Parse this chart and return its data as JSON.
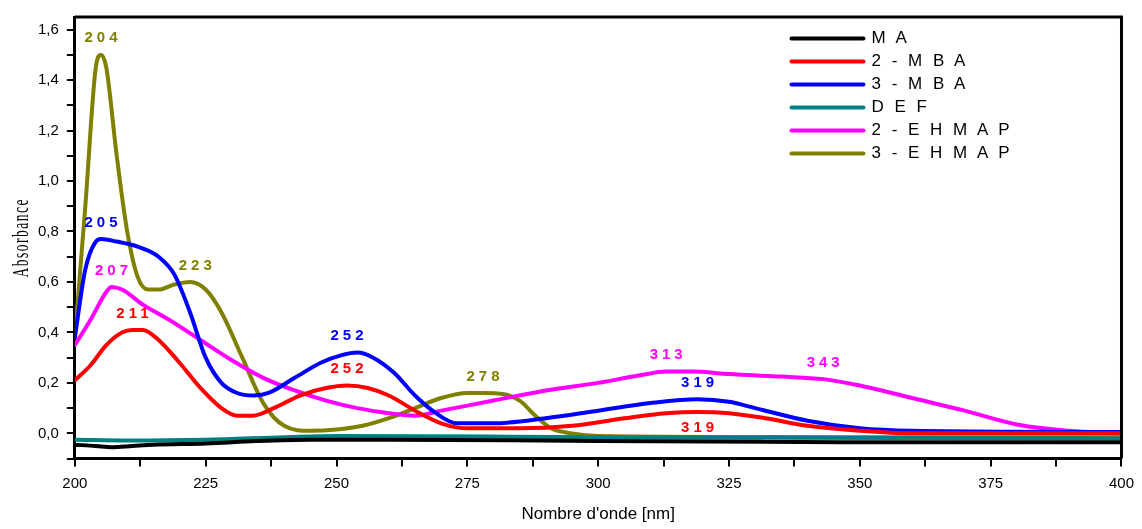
{
  "chart_data": {
    "type": "line",
    "xlabel": "Nombre d'onde [nm]",
    "ylabel": "Absorbance",
    "xlim": [
      200,
      400
    ],
    "ylim": [
      -0.1,
      1.65
    ],
    "xticks": [
      200,
      {
        "value": 212.5,
        "label": null
      },
      225,
      {
        "value": 237.5,
        "label": null
      },
      250,
      {
        "value": 262.5,
        "label": null
      },
      275,
      {
        "value": 287.5,
        "label": null
      },
      300,
      {
        "value": 312.5,
        "label": null
      },
      325,
      {
        "value": 337.5,
        "label": null
      },
      350,
      {
        "value": 362.5,
        "label": null
      },
      375,
      {
        "value": 387.5,
        "label": null
      },
      400
    ],
    "yticks": [
      {
        "value": -0.1,
        "label": null
      },
      {
        "value": 0,
        "label": "0,0"
      },
      {
        "value": 0.1,
        "label": null
      },
      {
        "value": 0.2,
        "label": "0,2"
      },
      {
        "value": 0.3,
        "label": null
      },
      {
        "value": 0.4,
        "label": "0,4"
      },
      {
        "value": 0.5,
        "label": null
      },
      {
        "value": 0.6,
        "label": "0,6"
      },
      {
        "value": 0.7,
        "label": null
      },
      {
        "value": 0.8,
        "label": "0,8"
      },
      {
        "value": 0.9,
        "label": null
      },
      {
        "value": 1.0,
        "label": "1,0"
      },
      {
        "value": 1.1,
        "label": null
      },
      {
        "value": 1.2,
        "label": "1,2"
      },
      {
        "value": 1.3,
        "label": null
      },
      {
        "value": 1.4,
        "label": "1,4"
      },
      {
        "value": 1.5,
        "label": null
      },
      {
        "value": 1.6,
        "label": "1,6"
      }
    ],
    "grid": false,
    "legend": "top right",
    "marker": "none",
    "line_style": "solid",
    "series": [
      {
        "name": "M A",
        "color": "#000000",
        "x": [
          200,
          204,
          207,
          211,
          215,
          225,
          235,
          245,
          260,
          300,
          350,
          400
        ],
        "values": [
          -0.045,
          -0.05,
          -0.055,
          -0.05,
          -0.045,
          -0.04,
          -0.03,
          -0.025,
          -0.025,
          -0.03,
          -0.035,
          -0.035
        ]
      },
      {
        "name": "2 - M B A",
        "color": "#ff0000",
        "x": [
          200,
          203,
          206,
          209,
          211,
          213,
          216,
          220,
          224,
          228,
          231,
          234,
          238,
          243,
          248,
          252,
          256,
          260,
          265,
          270,
          275,
          285,
          295,
          305,
          313,
          319,
          325,
          332,
          340,
          350,
          360,
          400
        ],
        "values": [
          0.21,
          0.27,
          0.35,
          0.4,
          0.41,
          0.41,
          0.37,
          0.28,
          0.18,
          0.1,
          0.07,
          0.07,
          0.1,
          0.15,
          0.18,
          0.19,
          0.18,
          0.15,
          0.09,
          0.04,
          0.02,
          0.02,
          0.03,
          0.06,
          0.08,
          0.085,
          0.08,
          0.06,
          0.03,
          0.01,
          0.0,
          0.0
        ]
      },
      {
        "name": "3 - M B A",
        "color": "#0000ff",
        "x": [
          200,
          202,
          204,
          205,
          208,
          212,
          216,
          219,
          222,
          225,
          228,
          231,
          234,
          237,
          242,
          247,
          251,
          254,
          257,
          261,
          265,
          269,
          273,
          280,
          290,
          300,
          310,
          319,
          325,
          330,
          340,
          350,
          360,
          400
        ],
        "values": [
          0.38,
          0.65,
          0.76,
          0.77,
          0.76,
          0.74,
          0.7,
          0.63,
          0.48,
          0.3,
          0.2,
          0.16,
          0.15,
          0.16,
          0.22,
          0.28,
          0.31,
          0.32,
          0.3,
          0.24,
          0.15,
          0.08,
          0.04,
          0.04,
          0.06,
          0.09,
          0.12,
          0.135,
          0.125,
          0.1,
          0.05,
          0.02,
          0.01,
          0.005
        ]
      },
      {
        "name": "D E F",
        "color": "#008080",
        "x": [
          200,
          210,
          225,
          240,
          250,
          300,
          400
        ],
        "values": [
          -0.025,
          -0.028,
          -0.025,
          -0.015,
          -0.01,
          -0.015,
          -0.02
        ]
      },
      {
        "name": "2 - E H M A P",
        "color": "#ff00ff",
        "x": [
          200,
          203,
          206,
          207,
          209,
          213,
          218,
          224,
          230,
          236,
          242,
          248,
          254,
          260,
          265,
          270,
          280,
          290,
          300,
          308,
          313,
          318,
          325,
          335,
          343,
          350,
          360,
          370,
          380,
          390,
          400
        ],
        "values": [
          0.35,
          0.45,
          0.56,
          0.58,
          0.57,
          0.51,
          0.45,
          0.37,
          0.29,
          0.22,
          0.17,
          0.13,
          0.1,
          0.08,
          0.07,
          0.09,
          0.13,
          0.17,
          0.2,
          0.23,
          0.245,
          0.245,
          0.235,
          0.225,
          0.215,
          0.19,
          0.14,
          0.09,
          0.035,
          0.01,
          0.0
        ]
      },
      {
        "name": "3 - E H M A P",
        "color": "#808000",
        "x": [
          200,
          202,
          204,
          205,
          206,
          208,
          210,
          212,
          214,
          216,
          219,
          222,
          225,
          228,
          232,
          236,
          240,
          245,
          250,
          255,
          260,
          265,
          270,
          275,
          278,
          282,
          285,
          288,
          291,
          295,
          300,
          350,
          400
        ],
        "values": [
          0.38,
          0.9,
          1.45,
          1.5,
          1.45,
          1.1,
          0.8,
          0.62,
          0.57,
          0.57,
          0.59,
          0.6,
          0.57,
          0.48,
          0.3,
          0.12,
          0.03,
          0.01,
          0.015,
          0.03,
          0.06,
          0.1,
          0.14,
          0.16,
          0.16,
          0.155,
          0.13,
          0.07,
          0.02,
          0.0,
          -0.01,
          -0.015,
          -0.015
        ]
      }
    ],
    "annotations": [
      {
        "text": "204",
        "x": 205,
        "y": 1.5
      },
      {
        "text": "205",
        "x": 205,
        "y": 0.77
      },
      {
        "text": "207",
        "x": 207,
        "y": 0.58
      },
      {
        "text": "211",
        "x": 211,
        "y": 0.41
      },
      {
        "text": "223",
        "x": 223,
        "y": 0.6
      },
      {
        "text": "252",
        "x": 252,
        "y": 0.32
      },
      {
        "text": "252",
        "x": 252,
        "y": 0.19
      },
      {
        "text": "278",
        "x": 278,
        "y": 0.16
      },
      {
        "text": "313",
        "x": 313,
        "y": 0.245
      },
      {
        "text": "319",
        "x": 319,
        "y": 0.135
      },
      {
        "text": "319",
        "x": 319,
        "y": 0.085
      },
      {
        "text": "343",
        "x": 343,
        "y": 0.215
      }
    ]
  }
}
